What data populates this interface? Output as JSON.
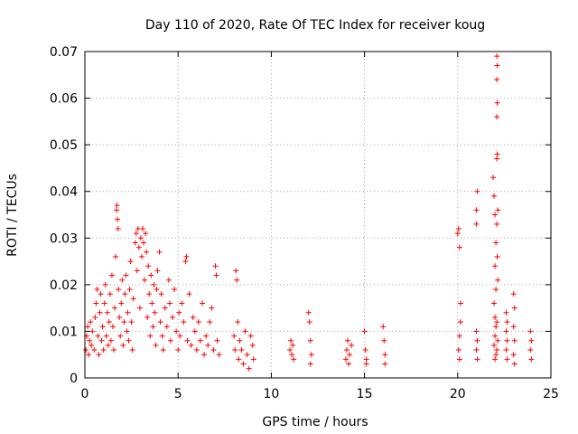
{
  "chart_data": {
    "type": "scatter",
    "title": "Day 110 of 2020, Rate Of TEC Index for receiver koug",
    "xlabel": "GPS time / hours",
    "ylabel": "ROTI / TECUs",
    "xlim": [
      0,
      25
    ],
    "ylim": [
      0,
      0.07
    ],
    "x_ticks": [
      "0",
      "5",
      "10",
      "15",
      "20",
      "25"
    ],
    "y_ticks": [
      "0",
      "0.01",
      "0.02",
      "0.03",
      "0.04",
      "0.05",
      "0.06",
      "0.07"
    ],
    "grid": true,
    "marker": "plus",
    "color": "#ff0000",
    "series": [
      {
        "points": [
          [
            0.05,
            0.006
          ],
          [
            0.1,
            0.009
          ],
          [
            0.15,
            0.011
          ],
          [
            0.2,
            0.005
          ],
          [
            0.25,
            0.008
          ],
          [
            0.3,
            0.012
          ],
          [
            0.35,
            0.007
          ],
          [
            0.4,
            0.01
          ],
          [
            0.5,
            0.006
          ],
          [
            0.55,
            0.013
          ],
          [
            0.6,
            0.016
          ],
          [
            0.65,
            0.019
          ],
          [
            0.7,
            0.009
          ],
          [
            0.75,
            0.005
          ],
          [
            0.8,
            0.014
          ],
          [
            0.85,
            0.018
          ],
          [
            0.9,
            0.008
          ],
          [
            0.95,
            0.011
          ],
          [
            1.0,
            0.006
          ],
          [
            1.05,
            0.016
          ],
          [
            1.1,
            0.02
          ],
          [
            1.15,
            0.009
          ],
          [
            1.2,
            0.014
          ],
          [
            1.25,
            0.007
          ],
          [
            1.3,
            0.012
          ],
          [
            1.35,
            0.018
          ],
          [
            1.4,
            0.008
          ],
          [
            1.45,
            0.022
          ],
          [
            1.5,
            0.011
          ],
          [
            1.55,
            0.006
          ],
          [
            1.6,
            0.015
          ],
          [
            1.65,
            0.026
          ],
          [
            1.7,
            0.036
          ],
          [
            1.72,
            0.037
          ],
          [
            1.75,
            0.034
          ],
          [
            1.78,
            0.032
          ],
          [
            1.8,
            0.019
          ],
          [
            1.85,
            0.013
          ],
          [
            1.9,
            0.009
          ],
          [
            1.95,
            0.016
          ],
          [
            2.0,
            0.021
          ],
          [
            2.05,
            0.007
          ],
          [
            2.1,
            0.012
          ],
          [
            2.15,
            0.018
          ],
          [
            2.2,
            0.022
          ],
          [
            2.25,
            0.01
          ],
          [
            2.3,
            0.014
          ],
          [
            2.35,
            0.008
          ],
          [
            2.4,
            0.019
          ],
          [
            2.45,
            0.025
          ],
          [
            2.5,
            0.012
          ],
          [
            2.55,
            0.006
          ],
          [
            2.6,
            0.017
          ],
          [
            2.7,
            0.029
          ],
          [
            2.75,
            0.031
          ],
          [
            2.8,
            0.023
          ],
          [
            2.85,
            0.032
          ],
          [
            2.9,
            0.028
          ],
          [
            2.95,
            0.015
          ],
          [
            3.0,
            0.03
          ],
          [
            3.05,
            0.026
          ],
          [
            3.1,
            0.032
          ],
          [
            3.15,
            0.029
          ],
          [
            3.2,
            0.021
          ],
          [
            3.25,
            0.031
          ],
          [
            3.3,
            0.027
          ],
          [
            3.35,
            0.013
          ],
          [
            3.4,
            0.024
          ],
          [
            3.45,
            0.018
          ],
          [
            3.5,
            0.009
          ],
          [
            3.55,
            0.022
          ],
          [
            3.6,
            0.016
          ],
          [
            3.65,
            0.011
          ],
          [
            3.7,
            0.02
          ],
          [
            3.75,
            0.014
          ],
          [
            3.8,
            0.007
          ],
          [
            3.85,
            0.019
          ],
          [
            3.9,
            0.023
          ],
          [
            4.0,
            0.027
          ],
          [
            4.05,
            0.012
          ],
          [
            4.1,
            0.018
          ],
          [
            4.15,
            0.009
          ],
          [
            4.2,
            0.006
          ],
          [
            4.3,
            0.015
          ],
          [
            4.4,
            0.011
          ],
          [
            4.5,
            0.021
          ],
          [
            4.55,
            0.016
          ],
          [
            4.6,
            0.008
          ],
          [
            4.7,
            0.013
          ],
          [
            4.8,
            0.019
          ],
          [
            4.9,
            0.01
          ],
          [
            5.0,
            0.006
          ],
          [
            5.05,
            0.014
          ],
          [
            5.1,
            0.009
          ],
          [
            5.2,
            0.016
          ],
          [
            5.3,
            0.012
          ],
          [
            5.4,
            0.025
          ],
          [
            5.45,
            0.026
          ],
          [
            5.5,
            0.008
          ],
          [
            5.6,
            0.018
          ],
          [
            5.7,
            0.007
          ],
          [
            5.8,
            0.013
          ],
          [
            5.9,
            0.01
          ],
          [
            6.0,
            0.006
          ],
          [
            6.1,
            0.012
          ],
          [
            6.2,
            0.008
          ],
          [
            6.3,
            0.016
          ],
          [
            6.4,
            0.005
          ],
          [
            6.5,
            0.009
          ],
          [
            6.6,
            0.007
          ],
          [
            6.7,
            0.012
          ],
          [
            6.8,
            0.015
          ],
          [
            6.9,
            0.006
          ],
          [
            7.0,
            0.024
          ],
          [
            7.05,
            0.022
          ],
          [
            7.1,
            0.008
          ],
          [
            7.2,
            0.005
          ],
          [
            8.0,
            0.009
          ],
          [
            8.05,
            0.006
          ],
          [
            8.1,
            0.023
          ],
          [
            8.15,
            0.021
          ],
          [
            8.2,
            0.012
          ],
          [
            8.25,
            0.004
          ],
          [
            8.3,
            0.008
          ],
          [
            8.4,
            0.006
          ],
          [
            8.5,
            0.003
          ],
          [
            8.6,
            0.01
          ],
          [
            8.7,
            0.005
          ],
          [
            8.8,
            0.002
          ],
          [
            8.9,
            0.009
          ],
          [
            9.0,
            0.007
          ],
          [
            9.05,
            0.004
          ],
          [
            11.0,
            0.006
          ],
          [
            11.05,
            0.008
          ],
          [
            11.1,
            0.005
          ],
          [
            11.15,
            0.007
          ],
          [
            11.2,
            0.004
          ],
          [
            12.0,
            0.014
          ],
          [
            12.05,
            0.012
          ],
          [
            12.1,
            0.008
          ],
          [
            12.15,
            0.005
          ],
          [
            12.1,
            0.003
          ],
          [
            14.0,
            0.004
          ],
          [
            14.05,
            0.006
          ],
          [
            14.1,
            0.008
          ],
          [
            14.15,
            0.003
          ],
          [
            14.2,
            0.005
          ],
          [
            14.3,
            0.007
          ],
          [
            15.0,
            0.01
          ],
          [
            15.05,
            0.006
          ],
          [
            15.1,
            0.004
          ],
          [
            15.1,
            0.003
          ],
          [
            16.0,
            0.011
          ],
          [
            16.05,
            0.008
          ],
          [
            16.1,
            0.005
          ],
          [
            16.1,
            0.003
          ],
          [
            20.0,
            0.031
          ],
          [
            20.05,
            0.032
          ],
          [
            20.1,
            0.028
          ],
          [
            20.15,
            0.016
          ],
          [
            20.1,
            0.009
          ],
          [
            20.05,
            0.006
          ],
          [
            20.1,
            0.004
          ],
          [
            20.15,
            0.012
          ],
          [
            21.0,
            0.01
          ],
          [
            21.05,
            0.008
          ],
          [
            21.0,
            0.006
          ],
          [
            21.05,
            0.004
          ],
          [
            21.0,
            0.033
          ],
          [
            21.05,
            0.04
          ],
          [
            21.0,
            0.036
          ],
          [
            21.9,
            0.043
          ],
          [
            21.95,
            0.039
          ],
          [
            22.0,
            0.035
          ],
          [
            22.05,
            0.029
          ],
          [
            22.0,
            0.024
          ],
          [
            22.05,
            0.019
          ],
          [
            21.95,
            0.016
          ],
          [
            22.0,
            0.013
          ],
          [
            22.05,
            0.011
          ],
          [
            22.0,
            0.009
          ],
          [
            21.95,
            0.007
          ],
          [
            22.05,
            0.005
          ],
          [
            22.0,
            0.004
          ],
          [
            22.1,
            0.069
          ],
          [
            22.12,
            0.067
          ],
          [
            22.1,
            0.064
          ],
          [
            22.12,
            0.059
          ],
          [
            22.1,
            0.056
          ],
          [
            22.12,
            0.048
          ],
          [
            22.1,
            0.047
          ],
          [
            22.15,
            0.036
          ],
          [
            22.1,
            0.033
          ],
          [
            22.12,
            0.026
          ],
          [
            22.15,
            0.021
          ],
          [
            22.1,
            0.012
          ],
          [
            22.15,
            0.008
          ],
          [
            22.1,
            0.006
          ],
          [
            22.6,
            0.014
          ],
          [
            22.65,
            0.012
          ],
          [
            22.6,
            0.01
          ],
          [
            22.65,
            0.008
          ],
          [
            22.6,
            0.006
          ],
          [
            22.65,
            0.004
          ],
          [
            23.0,
            0.018
          ],
          [
            23.05,
            0.015
          ],
          [
            23.0,
            0.011
          ],
          [
            23.05,
            0.008
          ],
          [
            23.0,
            0.005
          ],
          [
            23.05,
            0.003
          ],
          [
            23.9,
            0.01
          ],
          [
            23.95,
            0.008
          ],
          [
            23.9,
            0.006
          ],
          [
            23.95,
            0.004
          ]
        ]
      }
    ]
  }
}
